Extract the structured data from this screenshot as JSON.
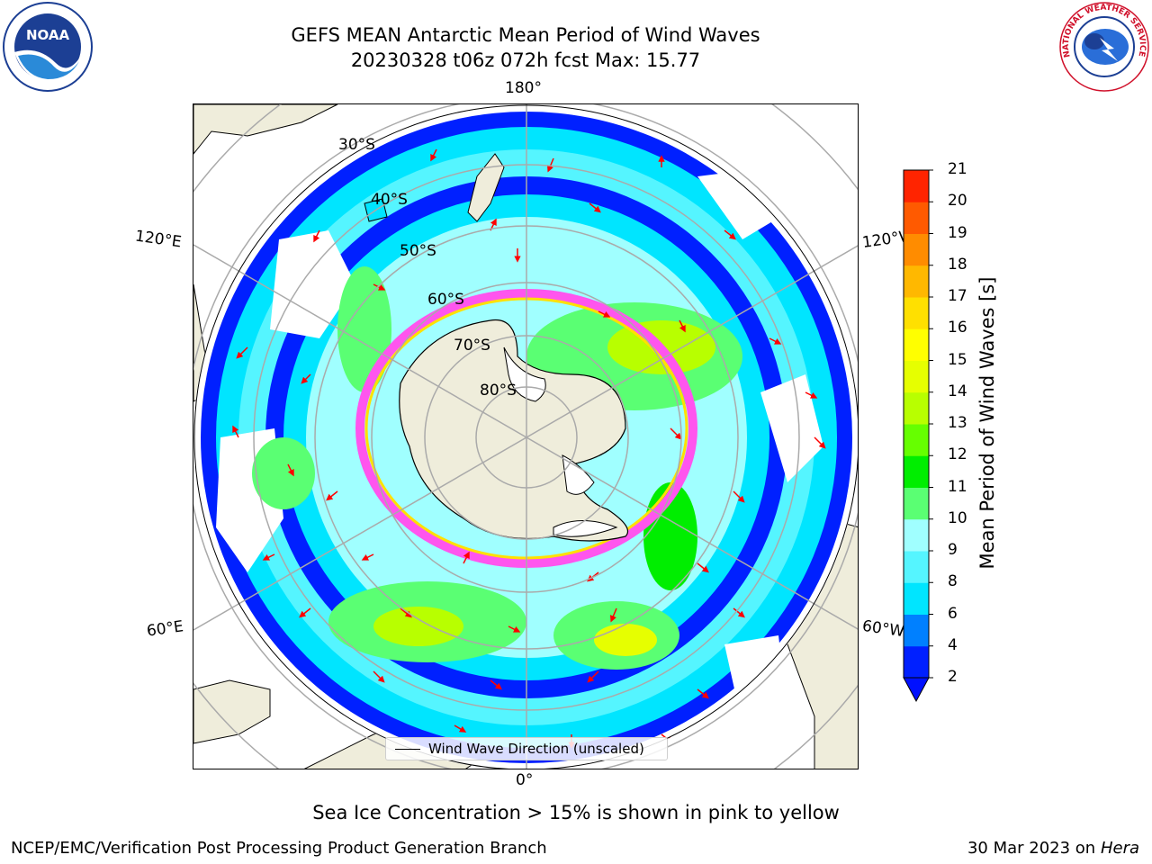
{
  "title_line1": "GEFS MEAN Antarctic Mean Period of Wind Waves",
  "title_line2": "20230328 t06z 072h fcst   Max: 15.77",
  "noaa_logo_text": "NOAA",
  "nws_logo_text": "NATIONAL WEATHER SERVICE",
  "map": {
    "projection": "south-polar-stereographic",
    "land_color": "#efeddb",
    "longitude_labels": {
      "top": "180°",
      "bottom": "0°",
      "left_upper": "120°E",
      "left_lower": "60°E",
      "right_upper": "120°W",
      "right_lower": "60°W"
    },
    "latitude_labels": [
      "30°S",
      "40°S",
      "50°S",
      "60°S",
      "70°S",
      "80°S"
    ],
    "legend_label": "Wind Wave Direction (unscaled)",
    "vector_color": "#ff0000"
  },
  "colorbar": {
    "label": "Mean Period of Wind Waves [s]",
    "ticks": [
      "2",
      "4",
      "6",
      "8",
      "9",
      "10",
      "11",
      "12",
      "13",
      "14",
      "15",
      "16",
      "17",
      "18",
      "19",
      "20",
      "21"
    ],
    "colors": [
      "#0020ff",
      "#0080ff",
      "#00e5ff",
      "#55f5ff",
      "#a0ffff",
      "#5aff73",
      "#00ee00",
      "#66ff00",
      "#b8ff00",
      "#e6ff00",
      "#ffff00",
      "#ffe000",
      "#ffb800",
      "#ff8c00",
      "#ff5a00",
      "#ff2400"
    ],
    "extend": "min",
    "under_color": "#0010ff"
  },
  "ice_note": "Sea Ice Concentration > 15% is shown in pink to yellow",
  "footer_left": "NCEP/EMC/Verification Post Processing Product Generation Branch",
  "footer_right_date": "30 Mar 2023 on",
  "footer_right_host": "Hera"
}
